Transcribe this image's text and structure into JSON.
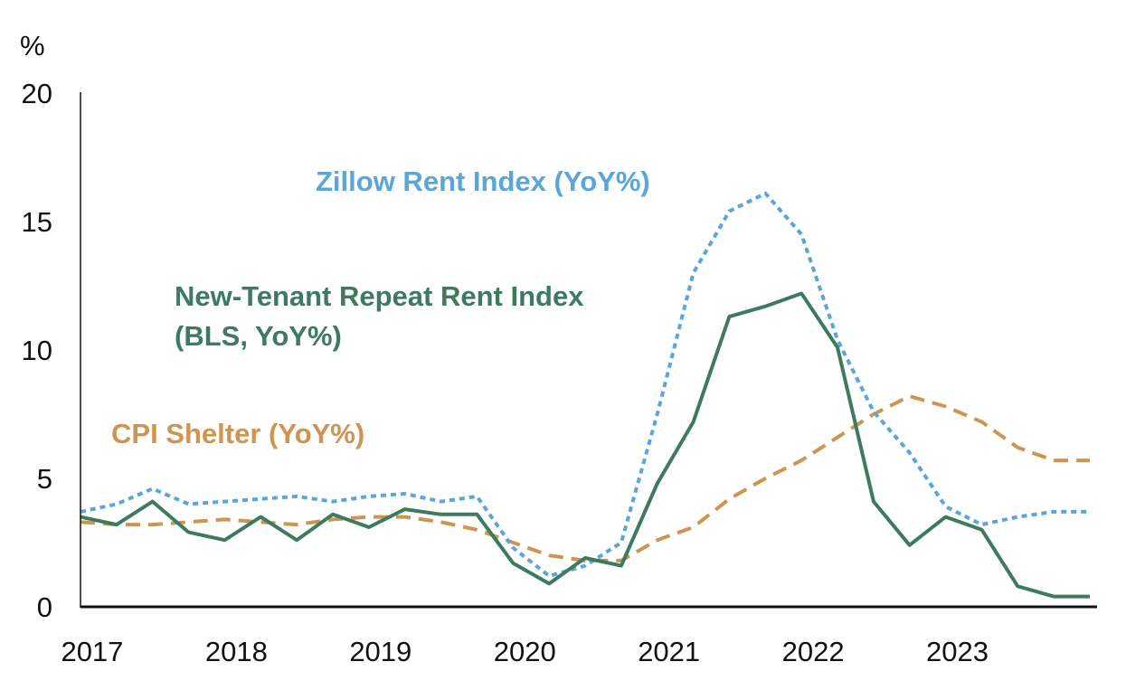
{
  "chart_data": {
    "type": "line",
    "ylabel": "%",
    "ylim": [
      0,
      20
    ],
    "yticks": [
      0,
      5,
      10,
      15,
      20
    ],
    "xlim": [
      2016.9,
      2023.95
    ],
    "xticks": [
      "2017",
      "2018",
      "2019",
      "2020",
      "2021",
      "2022",
      "2023"
    ],
    "grid": false,
    "series": [
      {
        "name": "Zillow Rent Index (YoY%)",
        "label_lines": [
          "Zillow Rent Index (YoY%)"
        ],
        "color": "#5aa6d8",
        "style": "dotted",
        "x": [
          2016.9,
          2017.15,
          2017.4,
          2017.65,
          2017.9,
          2018.15,
          2018.4,
          2018.65,
          2018.9,
          2019.15,
          2019.4,
          2019.65,
          2019.9,
          2020.15,
          2020.4,
          2020.65,
          2020.9,
          2021.15,
          2021.4,
          2021.65,
          2021.9,
          2022.15,
          2022.4,
          2022.65,
          2022.9,
          2023.15,
          2023.4,
          2023.65,
          2023.9
        ],
        "values": [
          3.7,
          4.0,
          4.6,
          4.0,
          4.1,
          4.2,
          4.3,
          4.1,
          4.3,
          4.4,
          4.1,
          4.3,
          2.3,
          1.2,
          1.6,
          2.5,
          7.5,
          13.0,
          15.4,
          16.1,
          14.5,
          10.4,
          7.6,
          6.0,
          3.9,
          3.2,
          3.5,
          3.7,
          3.7
        ]
      },
      {
        "name": "New-Tenant Repeat Rent Index (BLS, YoY%)",
        "label_lines": [
          "New-Tenant Repeat Rent Index",
          "(BLS, YoY%)"
        ],
        "color": "#3d7a5e",
        "style": "solid",
        "x": [
          2016.9,
          2017.15,
          2017.4,
          2017.65,
          2017.9,
          2018.15,
          2018.4,
          2018.65,
          2018.9,
          2019.15,
          2019.4,
          2019.65,
          2019.9,
          2020.15,
          2020.4,
          2020.65,
          2020.9,
          2021.15,
          2021.4,
          2021.65,
          2021.9,
          2022.15,
          2022.4,
          2022.65,
          2022.9,
          2023.15,
          2023.4,
          2023.65,
          2023.9
        ],
        "values": [
          3.5,
          3.2,
          4.1,
          2.9,
          2.6,
          3.5,
          2.6,
          3.6,
          3.1,
          3.8,
          3.6,
          3.6,
          1.7,
          0.9,
          1.9,
          1.6,
          4.8,
          7.2,
          11.3,
          11.7,
          12.2,
          10.1,
          4.1,
          2.4,
          3.5,
          3.0,
          0.8,
          0.4,
          0.4
        ]
      },
      {
        "name": "CPI Shelter (YoY%)",
        "label_lines": [
          "CPI Shelter (YoY%)"
        ],
        "color": "#cd9452",
        "style": "dashed",
        "x": [
          2016.9,
          2017.15,
          2017.4,
          2017.65,
          2017.9,
          2018.15,
          2018.4,
          2018.65,
          2018.9,
          2019.15,
          2019.4,
          2019.65,
          2019.9,
          2020.15,
          2020.4,
          2020.65,
          2020.9,
          2021.15,
          2021.4,
          2021.65,
          2021.9,
          2022.15,
          2022.4,
          2022.65,
          2022.9,
          2023.15,
          2023.4,
          2023.65,
          2023.9
        ],
        "values": [
          3.3,
          3.2,
          3.2,
          3.3,
          3.4,
          3.3,
          3.2,
          3.4,
          3.5,
          3.5,
          3.3,
          3.0,
          2.5,
          2.0,
          1.8,
          1.8,
          2.6,
          3.1,
          4.2,
          5.0,
          5.7,
          6.6,
          7.5,
          8.2,
          7.8,
          7.2,
          6.2,
          5.7,
          5.7
        ]
      }
    ]
  }
}
